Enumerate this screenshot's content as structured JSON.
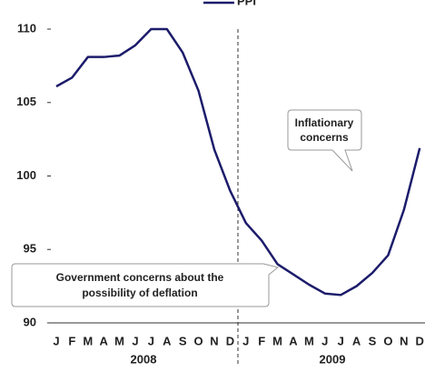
{
  "chart_data": {
    "type": "line",
    "categories": [
      "J",
      "F",
      "M",
      "A",
      "M",
      "J",
      "J",
      "A",
      "S",
      "O",
      "N",
      "D",
      "J",
      "F",
      "M",
      "A",
      "M",
      "J",
      "J",
      "A",
      "S",
      "O",
      "N",
      "D"
    ],
    "x_group_labels": [
      "2008",
      "2009"
    ],
    "series": [
      {
        "name": "PPI",
        "color": "#1c1c6b",
        "values": [
          106.1,
          106.7,
          108.1,
          108.1,
          108.2,
          108.9,
          110,
          110,
          108.4,
          105.8,
          101.8,
          99,
          96.8,
          95.6,
          94,
          93.3,
          92.6,
          92,
          91.9,
          92.5,
          93.4,
          94.6,
          97.7,
          101.9
        ]
      }
    ],
    "ylim": [
      90,
      110
    ],
    "yticks": [
      90,
      95,
      100,
      105,
      110
    ],
    "grid": false,
    "annotations": [
      {
        "lines": [
          "Inflationary",
          "concerns"
        ]
      },
      {
        "lines": [
          "Government concerns about the",
          "possibility of deflation"
        ]
      }
    ]
  }
}
